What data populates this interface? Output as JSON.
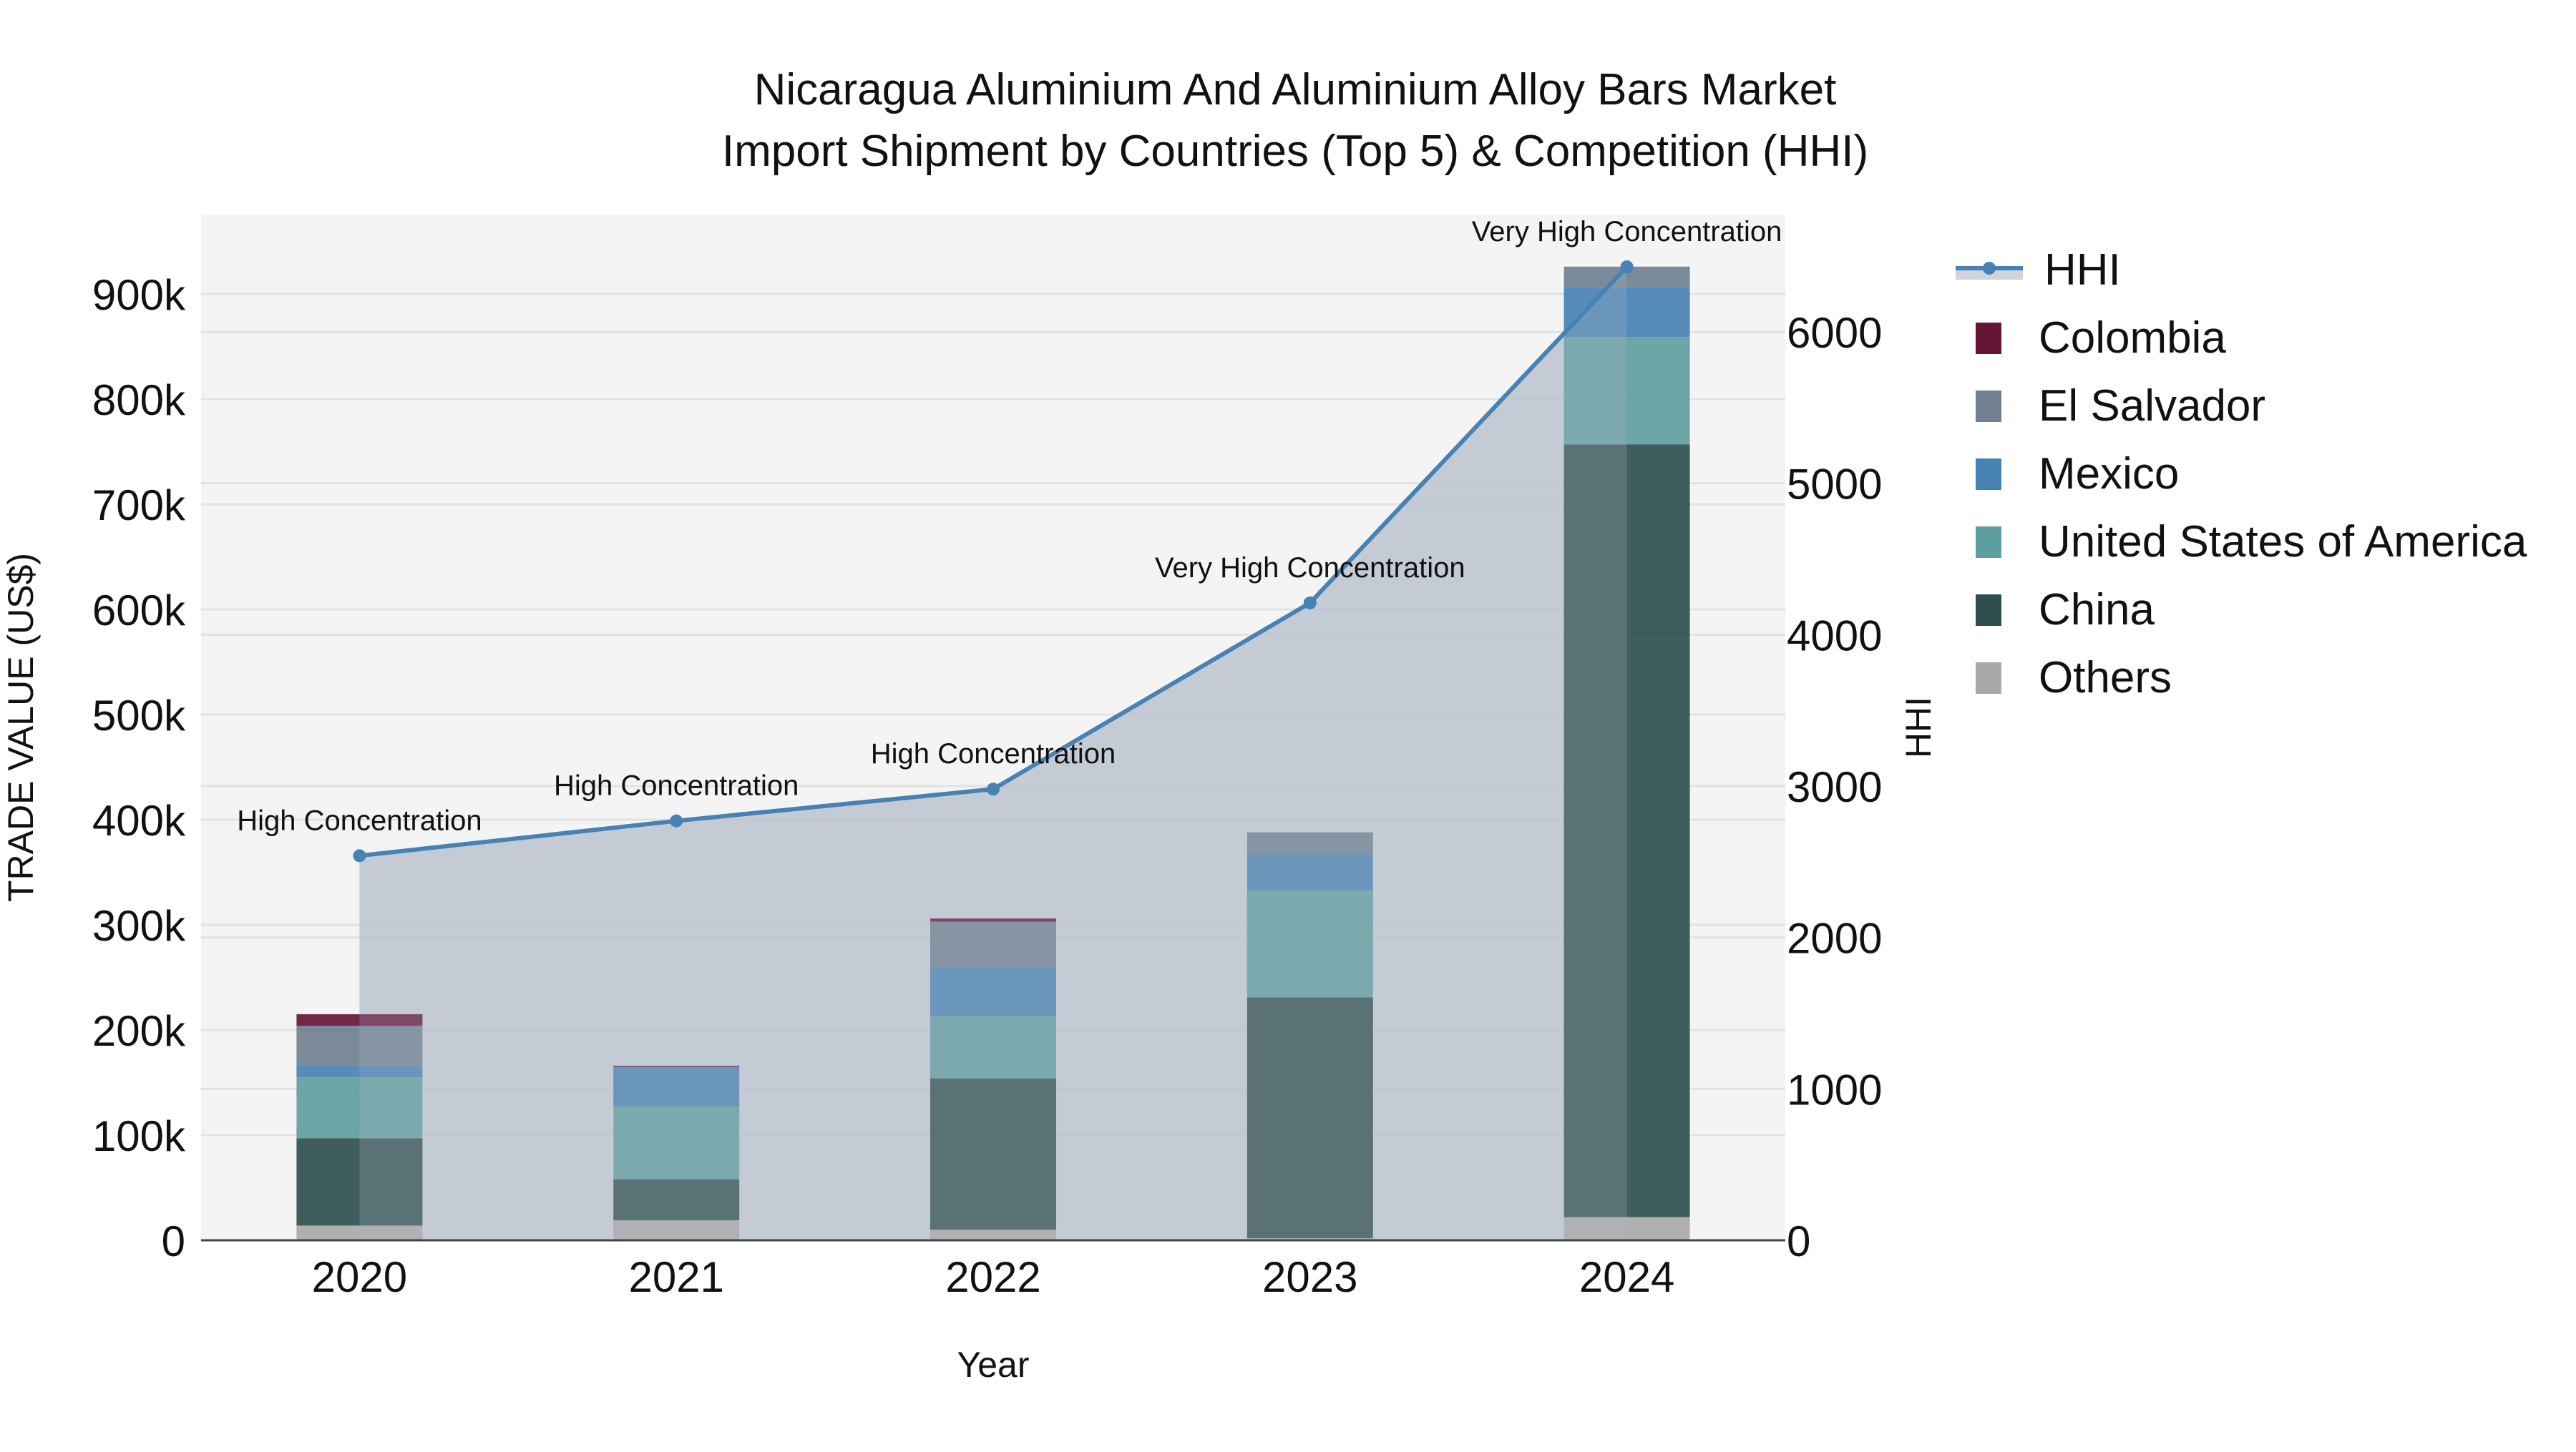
{
  "chart_data": {
    "type": "bar",
    "stacked": true,
    "title": "Nicaragua Aluminium And Aluminium Alloy Bars Market",
    "subtitle": "Import Shipment by Countries (Top 5) & Competition (HHI)",
    "xlabel": "Year",
    "ylabel": "TRADE VALUE (US$)",
    "y2label": "HHI",
    "categories": [
      "2020",
      "2021",
      "2022",
      "2023",
      "2024"
    ],
    "ylim": [
      0,
      970000
    ],
    "y2lim": [
      0,
      6800
    ],
    "yticks": [
      "0",
      "100k",
      "200k",
      "300k",
      "400k",
      "500k",
      "600k",
      "700k",
      "800k",
      "900k"
    ],
    "ytick_values": [
      0,
      100000,
      200000,
      300000,
      400000,
      500000,
      600000,
      700000,
      800000,
      900000
    ],
    "y2ticks": [
      "0",
      "1000",
      "2000",
      "3000",
      "4000",
      "5000",
      "6000"
    ],
    "y2tick_values": [
      0,
      1000,
      2000,
      3000,
      4000,
      5000,
      6000
    ],
    "grid": true,
    "legend_position": "right",
    "series": [
      {
        "name": "Others",
        "color": "#a9a9a9",
        "values": [
          14000,
          19000,
          10000,
          2000,
          22000
        ]
      },
      {
        "name": "China",
        "color": "#2f4f4f",
        "values": [
          83000,
          39000,
          144000,
          229000,
          735000
        ]
      },
      {
        "name": "United States of America",
        "color": "#5f9ea0",
        "values": [
          58000,
          69000,
          59000,
          102000,
          102000
        ]
      },
      {
        "name": "Mexico",
        "color": "#4682b4",
        "values": [
          11000,
          38000,
          46000,
          34000,
          47000
        ]
      },
      {
        "name": "El Salvador",
        "color": "#708090",
        "values": [
          38000,
          0,
          44000,
          21000,
          20000
        ]
      },
      {
        "name": "Colombia",
        "color": "#651536",
        "values": [
          11000,
          1000,
          3000,
          0,
          0
        ]
      }
    ],
    "line_series": {
      "name": "HHI",
      "axis": "y2",
      "color": "#4682b4",
      "fill_color": "rgba(176,184,200,0.6)",
      "values": [
        2540,
        2770,
        2980,
        4210,
        6430
      ],
      "annotations": [
        "High Concentration",
        "High Concentration",
        "High Concentration",
        "Very High Concentration",
        "Very High Concentration"
      ]
    }
  },
  "legend": {
    "items": [
      {
        "label": "HHI",
        "kind": "line",
        "color": "#4682b4"
      },
      {
        "label": "Colombia",
        "kind": "box",
        "color": "#651536"
      },
      {
        "label": "El Salvador",
        "kind": "box",
        "color": "#708090"
      },
      {
        "label": "Mexico",
        "kind": "box",
        "color": "#4682b4"
      },
      {
        "label": "United States of America",
        "kind": "box",
        "color": "#5f9ea0"
      },
      {
        "label": "China",
        "kind": "box",
        "color": "#2f4f4f"
      },
      {
        "label": "Others",
        "kind": "box",
        "color": "#a9a9a9"
      }
    ]
  },
  "colors": {
    "plot_bg": "#f4f4f4",
    "grid": "#e2e2e2",
    "axis_line": "#444444"
  }
}
